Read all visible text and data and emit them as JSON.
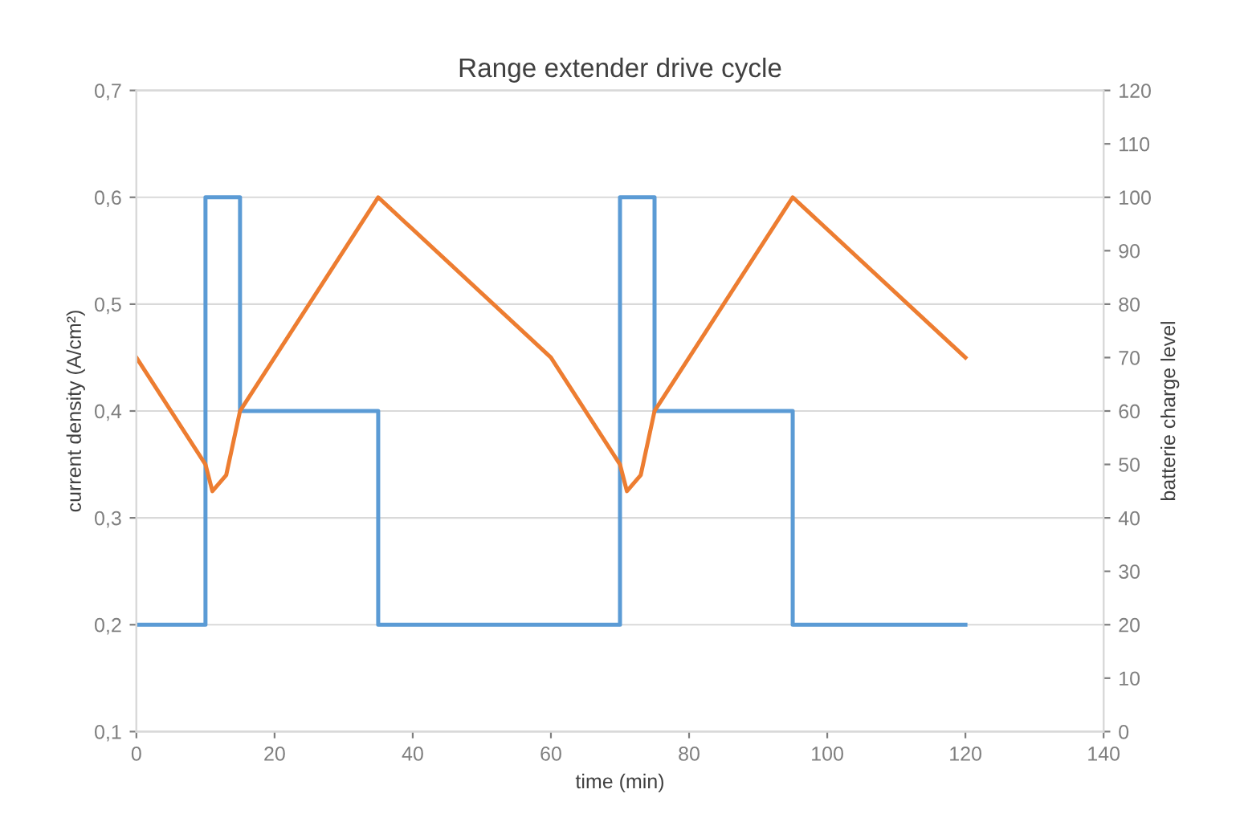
{
  "chart_data": {
    "type": "line",
    "title": "Range extender drive cycle",
    "xlabel": "time (min)",
    "ylabel": "current density (A/cm²)",
    "y2label": "batterie charge level",
    "xlim": [
      0,
      140
    ],
    "xticks": [
      0,
      20,
      40,
      60,
      80,
      100,
      120,
      140
    ],
    "ylim": [
      0.1,
      0.7
    ],
    "yticks": [
      {
        "value": 0.1,
        "label": "0,1"
      },
      {
        "value": 0.2,
        "label": "0,2"
      },
      {
        "value": 0.3,
        "label": "0,3"
      },
      {
        "value": 0.4,
        "label": "0,4"
      },
      {
        "value": 0.5,
        "label": "0,5"
      },
      {
        "value": 0.6,
        "label": "0,6"
      },
      {
        "value": 0.7,
        "label": "0,7"
      }
    ],
    "y2lim": [
      0,
      120
    ],
    "y2ticks": [
      0,
      10,
      20,
      30,
      40,
      50,
      60,
      70,
      80,
      90,
      100,
      110,
      120
    ],
    "grid": "y",
    "series": [
      {
        "type": "step",
        "color": "#5b9bd5",
        "x": [
          0,
          10,
          15,
          35,
          70,
          75,
          95,
          120
        ],
        "values": [
          0.2,
          0.6,
          0.4,
          0.2,
          0.6,
          0.4,
          0.2,
          0.2
        ]
      },
      {
        "axis": "y2",
        "color": "#ed7d31",
        "x": [
          0,
          10,
          11,
          13,
          15,
          35,
          60,
          70,
          71,
          73,
          75,
          95,
          120
        ],
        "values": [
          70,
          50,
          45,
          48,
          60,
          100,
          70,
          50,
          45,
          48,
          60,
          100,
          70
        ]
      }
    ]
  }
}
